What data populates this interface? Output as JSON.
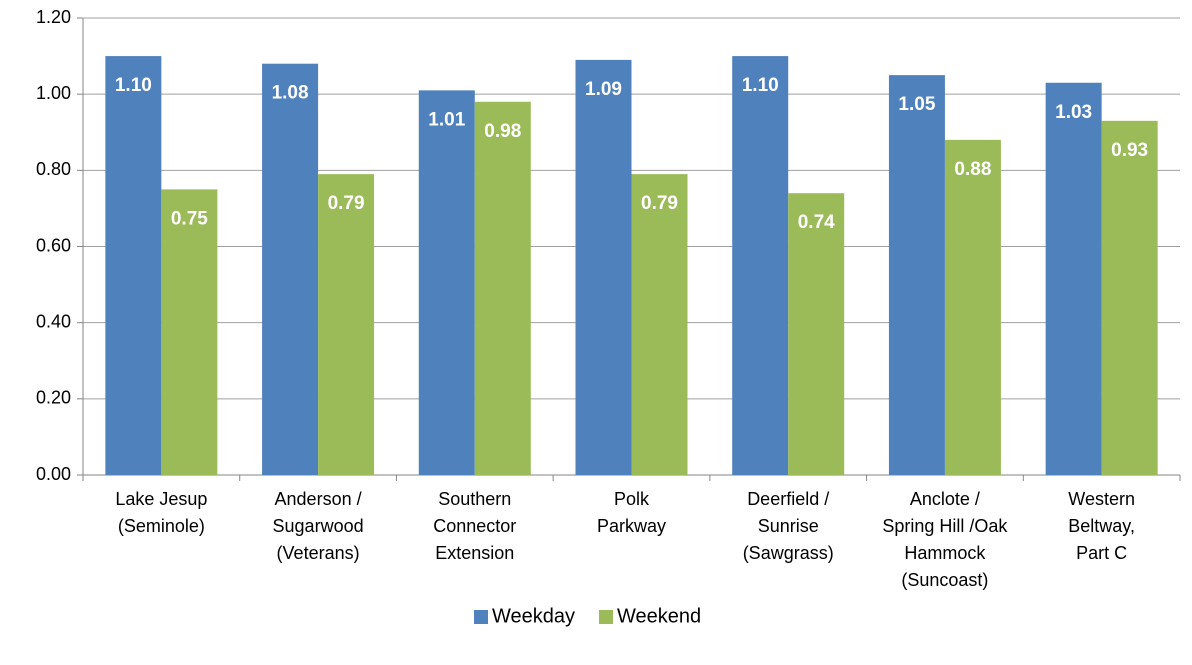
{
  "chart_data": {
    "type": "bar",
    "categories": [
      "Lake Jesup\n(Seminole)",
      "Anderson /\nSugarwood\n(Veterans)",
      "Southern\nConnector\nExtension",
      "Polk\nParkway",
      "Deerfield /\nSunrise\n(Sawgrass)",
      "Anclote /\nSpring Hill /Oak\nHammock\n(Suncoast)",
      "Western\nBeltway,\nPart C"
    ],
    "series": [
      {
        "name": "Weekday",
        "color": "#4f81bd",
        "values": [
          1.1,
          1.08,
          1.01,
          1.09,
          1.1,
          1.05,
          1.03
        ],
        "value_labels": [
          "1.10",
          "1.08",
          "1.01",
          "1.09",
          "1.10",
          "1.05",
          "1.03"
        ]
      },
      {
        "name": "Weekend",
        "color": "#9bbb59",
        "values": [
          0.75,
          0.79,
          0.98,
          0.79,
          0.74,
          0.88,
          0.93
        ],
        "value_labels": [
          "0.75",
          "0.79",
          "0.98",
          "0.79",
          "0.74",
          "0.88",
          "0.93"
        ]
      }
    ],
    "ylim": [
      0,
      1.2
    ],
    "yticks": [
      {
        "value": 0,
        "label": "0.00"
      },
      {
        "value": 0.2,
        "label": "0.20"
      },
      {
        "value": 0.4,
        "label": "0.40"
      },
      {
        "value": 0.6,
        "label": "0.60"
      },
      {
        "value": 0.8,
        "label": "0.80"
      },
      {
        "value": 1,
        "label": "1.00"
      },
      {
        "value": 1.2,
        "label": "1.20"
      }
    ],
    "grid": true,
    "legend": "bottom"
  }
}
